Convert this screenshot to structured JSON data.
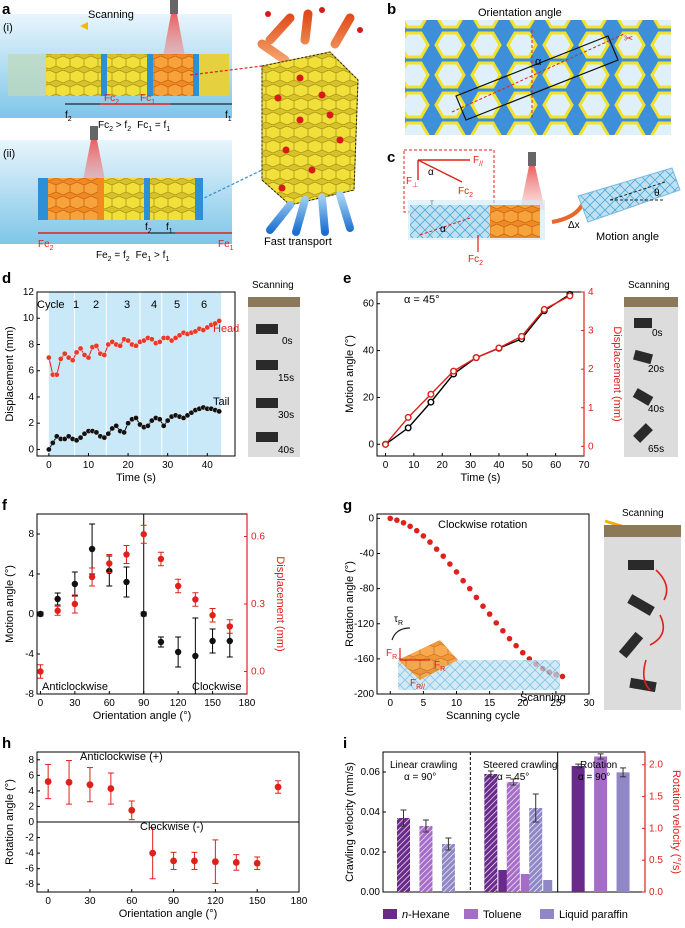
{
  "panels": {
    "a": {
      "label": "a",
      "scanning": "Scanning",
      "i": "(i)",
      "ii": "(ii)",
      "fc2": "Fc",
      "fc1": "Fc",
      "f2": "f",
      "f1": "f",
      "eq_i_1": "Fc",
      "eq_i_1b": " > f",
      "eq_i_2": "Fc",
      "eq_i_2b": " = f",
      "fe2": "Fe",
      "fe1": "Fe",
      "f2b": "f",
      "f1b": "f",
      "eq_ii_1": "Fe",
      "eq_ii_1b": " = f",
      "eq_ii_2": "Fe",
      "eq_ii_2b": " > f",
      "fast": "Fast transport",
      "sub1": "1",
      "sub2": "2"
    },
    "b": {
      "label": "b",
      "title": "Orientation angle",
      "alpha": "α"
    },
    "c": {
      "label": "c",
      "fpar": "F",
      "fpar_sub": "//",
      "fperp": "F",
      "fperp_sub": "⊥",
      "fc2": "Fc",
      "fc2_sub": "2",
      "tau": "τ",
      "alpha": "α",
      "theta": "θ",
      "dx": "Δx",
      "motion": "Motion angle"
    },
    "d": {
      "label": "d",
      "cycle": "Cycle",
      "c1": "1",
      "c2": "2",
      "c3": "3",
      "c4": "4",
      "c5": "5",
      "c6": "6",
      "head": "Head",
      "tail": "Tail",
      "scanning": "Scanning",
      "times": [
        "0s",
        "15s",
        "30s",
        "40s"
      ]
    },
    "e": {
      "label": "e",
      "alpha": "α = 45°",
      "scanning": "Scanning",
      "times": [
        "0s",
        "20s",
        "40s",
        "65s"
      ]
    },
    "f": {
      "label": "f",
      "anti": "Anticlockwise",
      "clock": "Clockwise"
    },
    "g": {
      "label": "g",
      "title": "Clockwise rotation",
      "scanning": "Scanning",
      "scanning2": "Scanning",
      "tau": "τ",
      "tau_sub": "R",
      "fr1": "F",
      "fr1_sub": "R⊥",
      "fr2": "F",
      "fr2_sub": "R//",
      "fr3": "F",
      "fr3_sub": "R"
    },
    "h": {
      "label": "h",
      "anti": "Anticlockwise (+)",
      "clock": "Clockwise (-)"
    },
    "i": {
      "label": "i",
      "lin": "Linear crawling",
      "lin_a": "α = 90°",
      "steer": "Steered crawling",
      "steer_a": "α = 45°",
      "rot": "Rotation",
      "rot_a": "α = 90°",
      "leg1_pre": "n",
      "leg1": "-Hexane",
      "leg2": "Toluene",
      "leg3": "Liquid paraffin"
    }
  },
  "chart_data": [
    {
      "id": "d",
      "type": "scatter",
      "xlabel": "Time (s)",
      "ylabel": "Displacement (mm)",
      "xlim": [
        -3,
        47
      ],
      "ylim": [
        -0.5,
        12
      ],
      "xticks": [
        0,
        10,
        20,
        30,
        40
      ],
      "yticks": [
        0,
        2,
        4,
        6,
        8,
        10,
        12
      ],
      "series": [
        {
          "name": "Head",
          "color": "#e0201a",
          "x": [
            0,
            1,
            2,
            3,
            4,
            5,
            6,
            7,
            8,
            9,
            10,
            11,
            12,
            13,
            14,
            15,
            16,
            17,
            18,
            19,
            20,
            21,
            22,
            23,
            24,
            25,
            26,
            27,
            28,
            29,
            30,
            31,
            32,
            33,
            34,
            35,
            36,
            37,
            38,
            39,
            40,
            41,
            42,
            43
          ],
          "y": [
            7.0,
            5.7,
            5.7,
            6.9,
            7.3,
            7.0,
            6.8,
            7.4,
            7.7,
            7.2,
            7.0,
            7.8,
            7.9,
            7.3,
            7.2,
            8.0,
            8.2,
            8.0,
            7.9,
            8.4,
            8.3,
            8.0,
            7.9,
            8.2,
            8.3,
            8.5,
            8.4,
            8.1,
            8.2,
            8.5,
            8.5,
            8.3,
            8.5,
            8.7,
            8.9,
            8.8,
            8.9,
            9.0,
            9.2,
            9.1,
            9.3,
            9.5,
            9.6,
            9.8
          ]
        },
        {
          "name": "Tail",
          "color": "#000000",
          "x": [
            0,
            1,
            2,
            3,
            4,
            5,
            6,
            7,
            8,
            9,
            10,
            11,
            12,
            13,
            14,
            15,
            16,
            17,
            18,
            19,
            20,
            21,
            22,
            23,
            24,
            25,
            26,
            27,
            28,
            29,
            30,
            31,
            32,
            33,
            34,
            35,
            36,
            37,
            38,
            39,
            40,
            41,
            42,
            43
          ],
          "y": [
            0.0,
            0.5,
            1.0,
            0.8,
            0.8,
            1.0,
            0.8,
            0.7,
            0.9,
            1.2,
            1.4,
            1.4,
            1.3,
            1.0,
            0.9,
            1.2,
            1.6,
            1.8,
            1.4,
            1.3,
            2.0,
            2.3,
            2.4,
            1.9,
            1.7,
            1.8,
            2.2,
            2.4,
            2.3,
            1.8,
            2.2,
            2.5,
            2.6,
            2.5,
            2.4,
            2.6,
            2.8,
            3.0,
            3.1,
            3.2,
            3.1,
            3.1,
            3.0,
            2.9
          ]
        }
      ],
      "cycles": [
        0,
        6.5,
        14.5,
        23,
        28.5,
        35,
        43.5
      ]
    },
    {
      "id": "e",
      "type": "line",
      "xlabel": "Time (s)",
      "ylabel": "Motion angle (°)",
      "y2label": "Displacement (mm)",
      "xlim": [
        -3,
        70
      ],
      "ylim": [
        -5,
        65
      ],
      "y2lim": [
        -0.25,
        4
      ],
      "xticks": [
        0,
        10,
        20,
        30,
        40,
        50,
        60,
        70
      ],
      "yticks": [
        0,
        20,
        40,
        60
      ],
      "y2ticks": [
        0,
        1,
        2,
        3,
        4
      ],
      "series": [
        {
          "name": "Motion angle",
          "color": "#000000",
          "x": [
            0,
            8,
            16,
            24,
            32,
            40,
            48,
            56,
            65
          ],
          "y": [
            0,
            7,
            18,
            30,
            37,
            41,
            45,
            57,
            64
          ]
        },
        {
          "name": "Displacement",
          "color": "#e0201a",
          "axis": "y2",
          "x": [
            0,
            8,
            16,
            24,
            32,
            40,
            48,
            56,
            65
          ],
          "y": [
            0.05,
            0.75,
            1.35,
            1.95,
            2.3,
            2.55,
            2.85,
            3.55,
            3.9
          ]
        }
      ]
    },
    {
      "id": "f",
      "type": "scatter",
      "xlabel": "Orientation angle (°)",
      "ylabel": "Motion angle (°)",
      "y2label": "Displacement (mm)",
      "xlim": [
        -3,
        180
      ],
      "ylim": [
        -8,
        10
      ],
      "y2lim": [
        -0.1,
        0.7
      ],
      "xticks": [
        0,
        30,
        60,
        90,
        120,
        150,
        180
      ],
      "yticks": [
        -8,
        -4,
        0,
        4,
        8
      ],
      "y2ticks": [
        0.0,
        0.3,
        0.6
      ],
      "series": [
        {
          "name": "Motion angle",
          "color": "#000000",
          "x": [
            0,
            15,
            30,
            45,
            60,
            75,
            90,
            105,
            120,
            135,
            150,
            165
          ],
          "y": [
            0,
            1.5,
            3,
            6.5,
            4.3,
            3.2,
            0,
            -2.8,
            -3.8,
            -4.2,
            -2.7,
            -2.7
          ],
          "err": [
            0.2,
            0.6,
            1.2,
            2.5,
            1.5,
            1.5,
            0.2,
            0.5,
            1.5,
            3.8,
            1.2,
            1.6
          ]
        },
        {
          "name": "Displacement",
          "color": "#e0201a",
          "axis": "y2",
          "x": [
            0,
            15,
            30,
            45,
            60,
            75,
            90,
            105,
            120,
            135,
            150,
            165
          ],
          "y": [
            0.0,
            0.27,
            0.3,
            0.42,
            0.48,
            0.52,
            0.61,
            0.5,
            0.38,
            0.32,
            0.25,
            0.2
          ],
          "err": [
            0.03,
            0.02,
            0.04,
            0.04,
            0.04,
            0.04,
            0.04,
            0.03,
            0.03,
            0.03,
            0.03,
            0.03
          ]
        }
      ]
    },
    {
      "id": "g",
      "type": "scatter",
      "xlabel": "Scanning cycle",
      "ylabel": "Rotation angle (°)",
      "xlim": [
        -2,
        30
      ],
      "ylim": [
        -200,
        5
      ],
      "xticks": [
        0,
        5,
        10,
        15,
        20,
        25,
        30
      ],
      "yticks": [
        0,
        -40,
        -80,
        -120,
        -160,
        -200
      ],
      "series": [
        {
          "name": "Rotation",
          "color": "#e0201a",
          "x": [
            0,
            1,
            2,
            3,
            4,
            5,
            6,
            7,
            8,
            9,
            10,
            11,
            12,
            13,
            14,
            15,
            16,
            17,
            18,
            19,
            20,
            21,
            22,
            23,
            24,
            25,
            26
          ],
          "y": [
            0,
            -2,
            -5,
            -9,
            -14,
            -20,
            -27,
            -35,
            -43,
            -52,
            -61,
            -71,
            -80,
            -90,
            -100,
            -109,
            -119,
            -128,
            -137,
            -145,
            -153,
            -160,
            -166,
            -171,
            -175,
            -178,
            -180
          ]
        }
      ]
    },
    {
      "id": "h",
      "type": "scatter",
      "xlabel": "Orientation angle (°)",
      "ylabel": "Rotation angle (°)",
      "xlim": [
        -8,
        180
      ],
      "ylim": [
        -9,
        9
      ],
      "xticks": [
        0,
        30,
        60,
        90,
        120,
        150,
        180
      ],
      "yticks": [
        -8,
        -6,
        -4,
        -2,
        0,
        2,
        4,
        6,
        8
      ],
      "series": [
        {
          "name": "Rotation",
          "color": "#e0201a",
          "x": [
            0,
            15,
            30,
            45,
            60,
            75,
            90,
            105,
            120,
            135,
            150,
            165
          ],
          "y": [
            5.2,
            5.1,
            4.8,
            4.3,
            1.5,
            -4.0,
            -5.0,
            -5.0,
            -5.1,
            -5.2,
            -5.3,
            4.5
          ],
          "err": [
            2.2,
            2.8,
            2.2,
            2.0,
            1.2,
            3.3,
            1.1,
            1.1,
            2.8,
            1.0,
            0.8,
            0.8
          ]
        }
      ]
    },
    {
      "id": "i",
      "type": "bar",
      "ylabel": "Crawling velocity (mm/s)",
      "y2label": "Rotation velocity (°/s)",
      "ylim": [
        0,
        0.07
      ],
      "y2lim": [
        0,
        2.2
      ],
      "yticks": [
        0.0,
        0.02,
        0.04,
        0.06
      ],
      "y2ticks": [
        0.0,
        0.5,
        1.0,
        1.5,
        2.0
      ],
      "groups": [
        {
          "name": "Linear crawling",
          "bars": [
            {
              "series": "n-Hexane",
              "value": 0.037,
              "err": 0.004,
              "style": "hatch"
            },
            {
              "series": "Toluene",
              "value": 0.033,
              "err": 0.003,
              "style": "hatch"
            },
            {
              "series": "Liquid paraffin",
              "value": 0.024,
              "err": 0.003,
              "style": "hatch"
            }
          ]
        },
        {
          "name": "Steered crawling",
          "bars": [
            {
              "series": "n-Hexane",
              "value": 0.059,
              "err": 0.0015,
              "style": "hatch",
              "small": 0.011
            },
            {
              "series": "Toluene",
              "value": 0.055,
              "err": 0.0015,
              "style": "hatch",
              "small": 0.009
            },
            {
              "series": "Liquid paraffin",
              "value": 0.042,
              "err": 0.007,
              "style": "hatch",
              "small": 0.006
            }
          ]
        },
        {
          "name": "Rotation",
          "axis": "y2",
          "bars": [
            {
              "series": "n-Hexane",
              "value": 1.98,
              "err": 0.03,
              "style": "solid"
            },
            {
              "series": "Toluene",
              "value": 2.13,
              "err": 0.04,
              "style": "solid"
            },
            {
              "series": "Liquid paraffin",
              "value": 1.88,
              "err": 0.07,
              "style": "solid"
            }
          ]
        }
      ],
      "colors": {
        "n-Hexane": "#6a2a8c",
        "Toluene": "#a56cc8",
        "Liquid paraffin": "#8f87c6"
      }
    }
  ]
}
